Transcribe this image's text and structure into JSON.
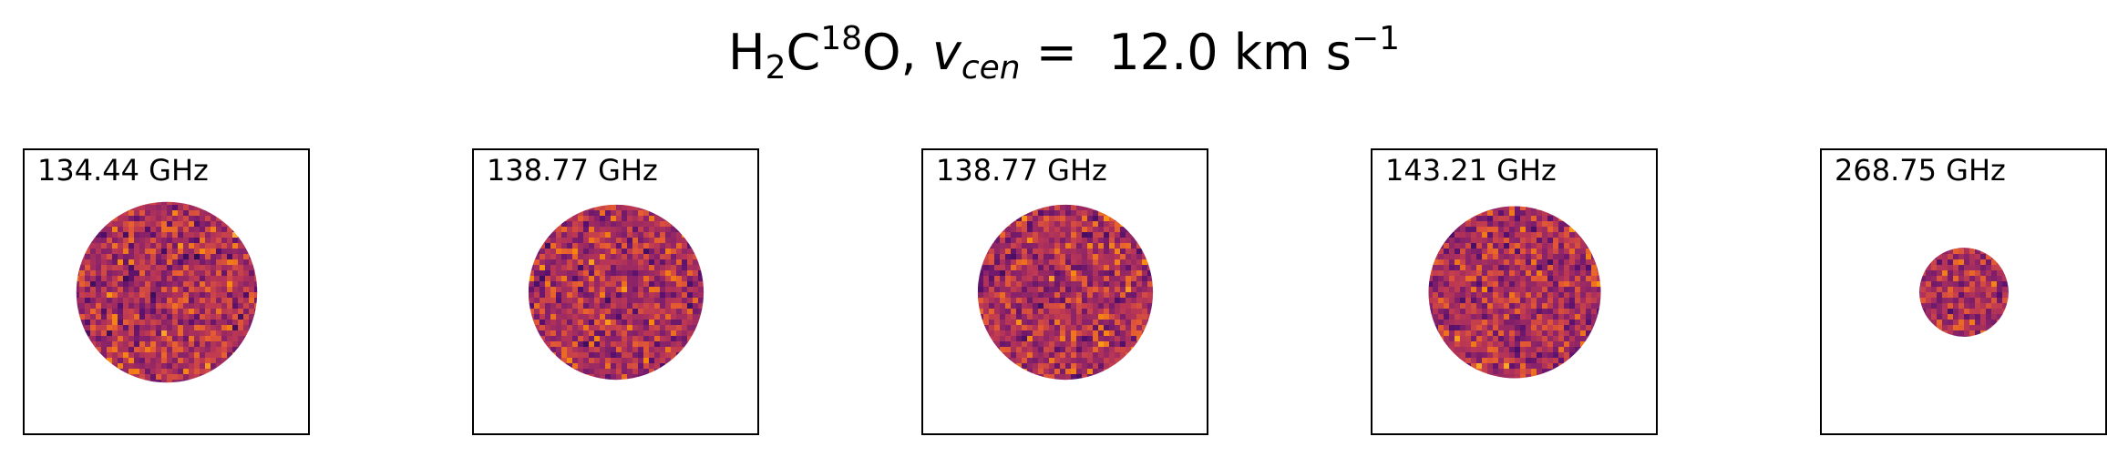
{
  "title": {
    "molecule_H": "H",
    "molecule_sub": "2",
    "molecule_C": "C",
    "molecule_sup": "18",
    "molecule_O": "O,",
    "v_symbol": "v",
    "v_sub": "cen",
    "eq": "=",
    "value": "12.0 km s",
    "unit_sup": "−1"
  },
  "chart_data": {
    "type": "heatmap",
    "title": "H2C18O, vcen = 12.0 km s−1",
    "colormap": "inferno",
    "panels": [
      {
        "label": "134.44 GHz",
        "disk_radius_fraction": 0.63
      },
      {
        "label": "138.77 GHz",
        "disk_radius_fraction": 0.61
      },
      {
        "label": "138.77 GHz",
        "disk_radius_fraction": 0.61
      },
      {
        "label": "143.21 GHz",
        "disk_radius_fraction": 0.6
      },
      {
        "label": "268.75 GHz",
        "disk_radius_fraction": 0.31
      }
    ]
  }
}
